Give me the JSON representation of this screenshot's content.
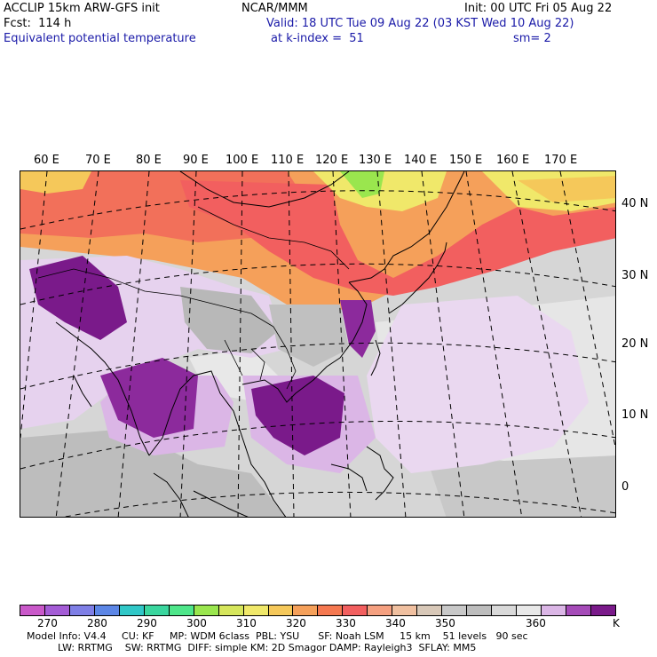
{
  "header": {
    "left_line1": "ACCLIP 15km ARW-GFS init",
    "left_line2": "Fcst:  114 h",
    "left_line3": "Equivalent potential temperature",
    "center_line1": "NCAR/MMM",
    "center_line2": "Valid: 18 UTC Tue 09 Aug 22 (03 KST Wed 10 Aug 22)",
    "center_line3": "at k-index =  51",
    "right_line1": "Init: 00 UTC Fri 05 Aug 22",
    "right_line3": "sm= 2"
  },
  "map": {
    "lon_labels": [
      "60 E",
      "70 E",
      "80 E",
      "90 E",
      "100 E",
      "110 E",
      "120 E",
      "130 E",
      "140 E",
      "150 E",
      "160 E",
      "170 E"
    ],
    "lat_labels": [
      "40 N",
      "30 N",
      "20 N",
      "10 N",
      "0"
    ]
  },
  "colorbar": {
    "colors": [
      "#c958c9",
      "#a45cd6",
      "#7f7fe6",
      "#5c86e6",
      "#30c7c7",
      "#3ad69e",
      "#4ee68a",
      "#9ae64e",
      "#d6e65c",
      "#f0e86a",
      "#f5c85a",
      "#f5a05a",
      "#f57850",
      "#f25f5f",
      "#f5a080",
      "#f0c0a0",
      "#d8c8b8",
      "#c8c8c8",
      "#bdbdbd",
      "#d9d9d9",
      "#e8e8e8",
      "#dbb6e6",
      "#a54bb8",
      "#7a1a8a"
    ],
    "labels": [
      "270",
      "280",
      "290",
      "300",
      "310",
      "320",
      "330",
      "340",
      "350",
      "360"
    ],
    "unit": "K"
  },
  "model_info": {
    "line1": "Model Info: V4.4     CU: KF     MP: WDM 6class  PBL: YSU      SF: Noah LSM     15 km    51 levels   90 sec",
    "line2": "          LW: RRTMG    SW: RRTMG  DIFF: simple KM: 2D Smagor DAMP: Rayleigh3  SFLAY: MM5"
  }
}
